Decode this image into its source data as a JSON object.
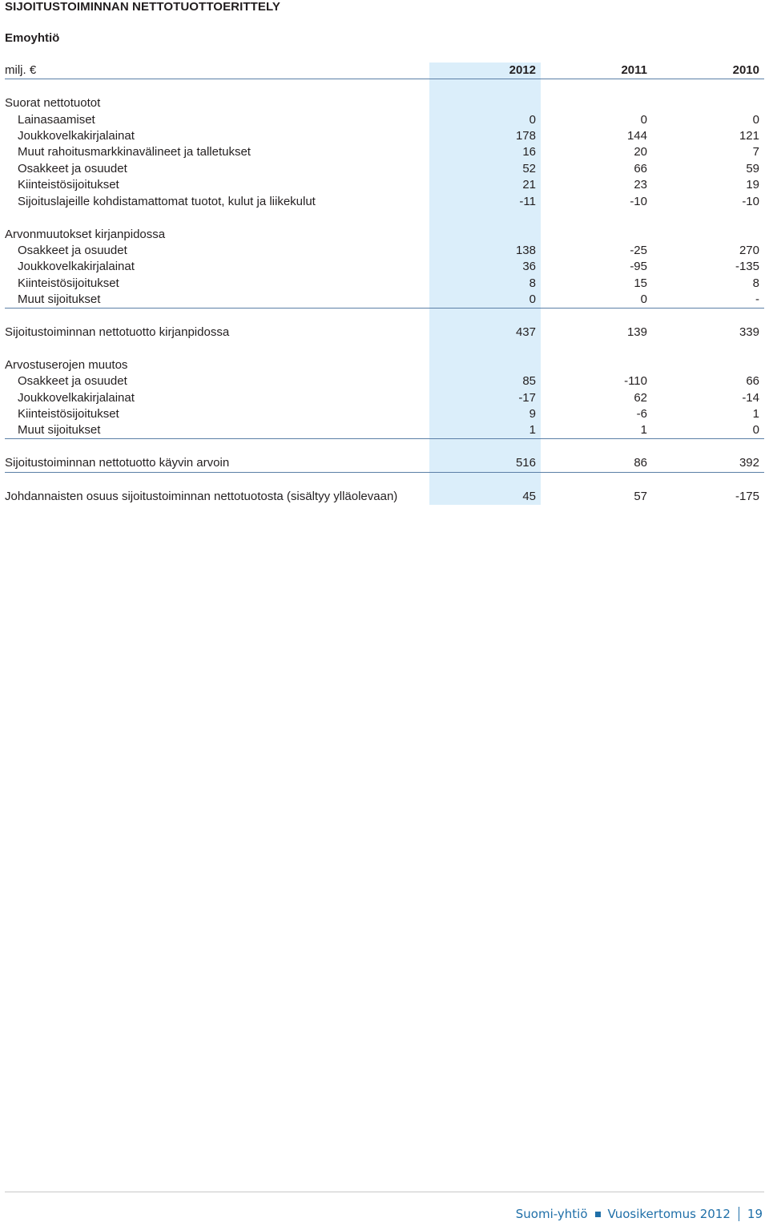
{
  "title": "SIJOITUSTOIMINNAN NETTOTUOTTOERITTELY",
  "subtitle": "Emoyhtiö",
  "header": {
    "unit": "milj. €",
    "y2012": "2012",
    "y2011": "2011",
    "y2010": "2010"
  },
  "rows": [
    {
      "label": "Suorat nettotuotot",
      "v2012": "",
      "v2011": "",
      "v2010": ""
    },
    {
      "label": "Lainasaamiset",
      "v2012": "0",
      "v2011": "0",
      "v2010": "0"
    },
    {
      "label": "Joukkovelkakirjalainat",
      "v2012": "178",
      "v2011": "144",
      "v2010": "121"
    },
    {
      "label": "Muut rahoitusmarkkinavälineet ja talletukset",
      "v2012": "16",
      "v2011": "20",
      "v2010": "7"
    },
    {
      "label": "Osakkeet ja osuudet",
      "v2012": "52",
      "v2011": "66",
      "v2010": "59"
    },
    {
      "label": "Kiinteistösijoitukset",
      "v2012": "21",
      "v2011": "23",
      "v2010": "19"
    },
    {
      "label": "Sijoituslajeille kohdistamattomat tuotot, kulut ja liikekulut",
      "v2012": "-11",
      "v2011": "-10",
      "v2010": "-10"
    },
    {
      "label": "Arvonmuutokset kirjanpidossa",
      "v2012": "",
      "v2011": "",
      "v2010": ""
    },
    {
      "label": "Osakkeet ja osuudet",
      "v2012": "138",
      "v2011": "-25",
      "v2010": "270"
    },
    {
      "label": "Joukkovelkakirjalainat",
      "v2012": "36",
      "v2011": "-95",
      "v2010": "-135"
    },
    {
      "label": "Kiinteistösijoitukset",
      "v2012": "8",
      "v2011": "15",
      "v2010": "8"
    },
    {
      "label": "Muut sijoitukset",
      "v2012": "0",
      "v2011": "0",
      "v2010": "-"
    },
    {
      "label": "Sijoitustoiminnan nettotuotto kirjanpidossa",
      "v2012": "437",
      "v2011": "139",
      "v2010": "339"
    },
    {
      "label": "Arvostuserojen muutos",
      "v2012": "",
      "v2011": "",
      "v2010": ""
    },
    {
      "label": "Osakkeet ja osuudet",
      "v2012": "85",
      "v2011": "-110",
      "v2010": "66"
    },
    {
      "label": "Joukkovelkakirjalainat",
      "v2012": "-17",
      "v2011": "62",
      "v2010": "-14"
    },
    {
      "label": "Kiinteistösijoitukset",
      "v2012": "9",
      "v2011": "-6",
      "v2010": "1"
    },
    {
      "label": "Muut sijoitukset",
      "v2012": "1",
      "v2011": "1",
      "v2010": "0"
    },
    {
      "label": "Sijoitustoiminnan nettotuotto käyvin arvoin",
      "v2012": "516",
      "v2011": "86",
      "v2010": "392"
    },
    {
      "label": "Johdannaisten osuus sijoitustoiminnan nettotuotosta (sisältyy ylläolevaan)",
      "v2012": "45",
      "v2011": "57",
      "v2010": "-175"
    }
  ],
  "footer": {
    "company": "Suomi-yhtiö",
    "report": "Vuosikertomus 2012",
    "page": "19"
  },
  "colors": {
    "highlight": "#dbeefa",
    "rule": "#5b7fa6",
    "footer_text": "#1f6fa8"
  }
}
